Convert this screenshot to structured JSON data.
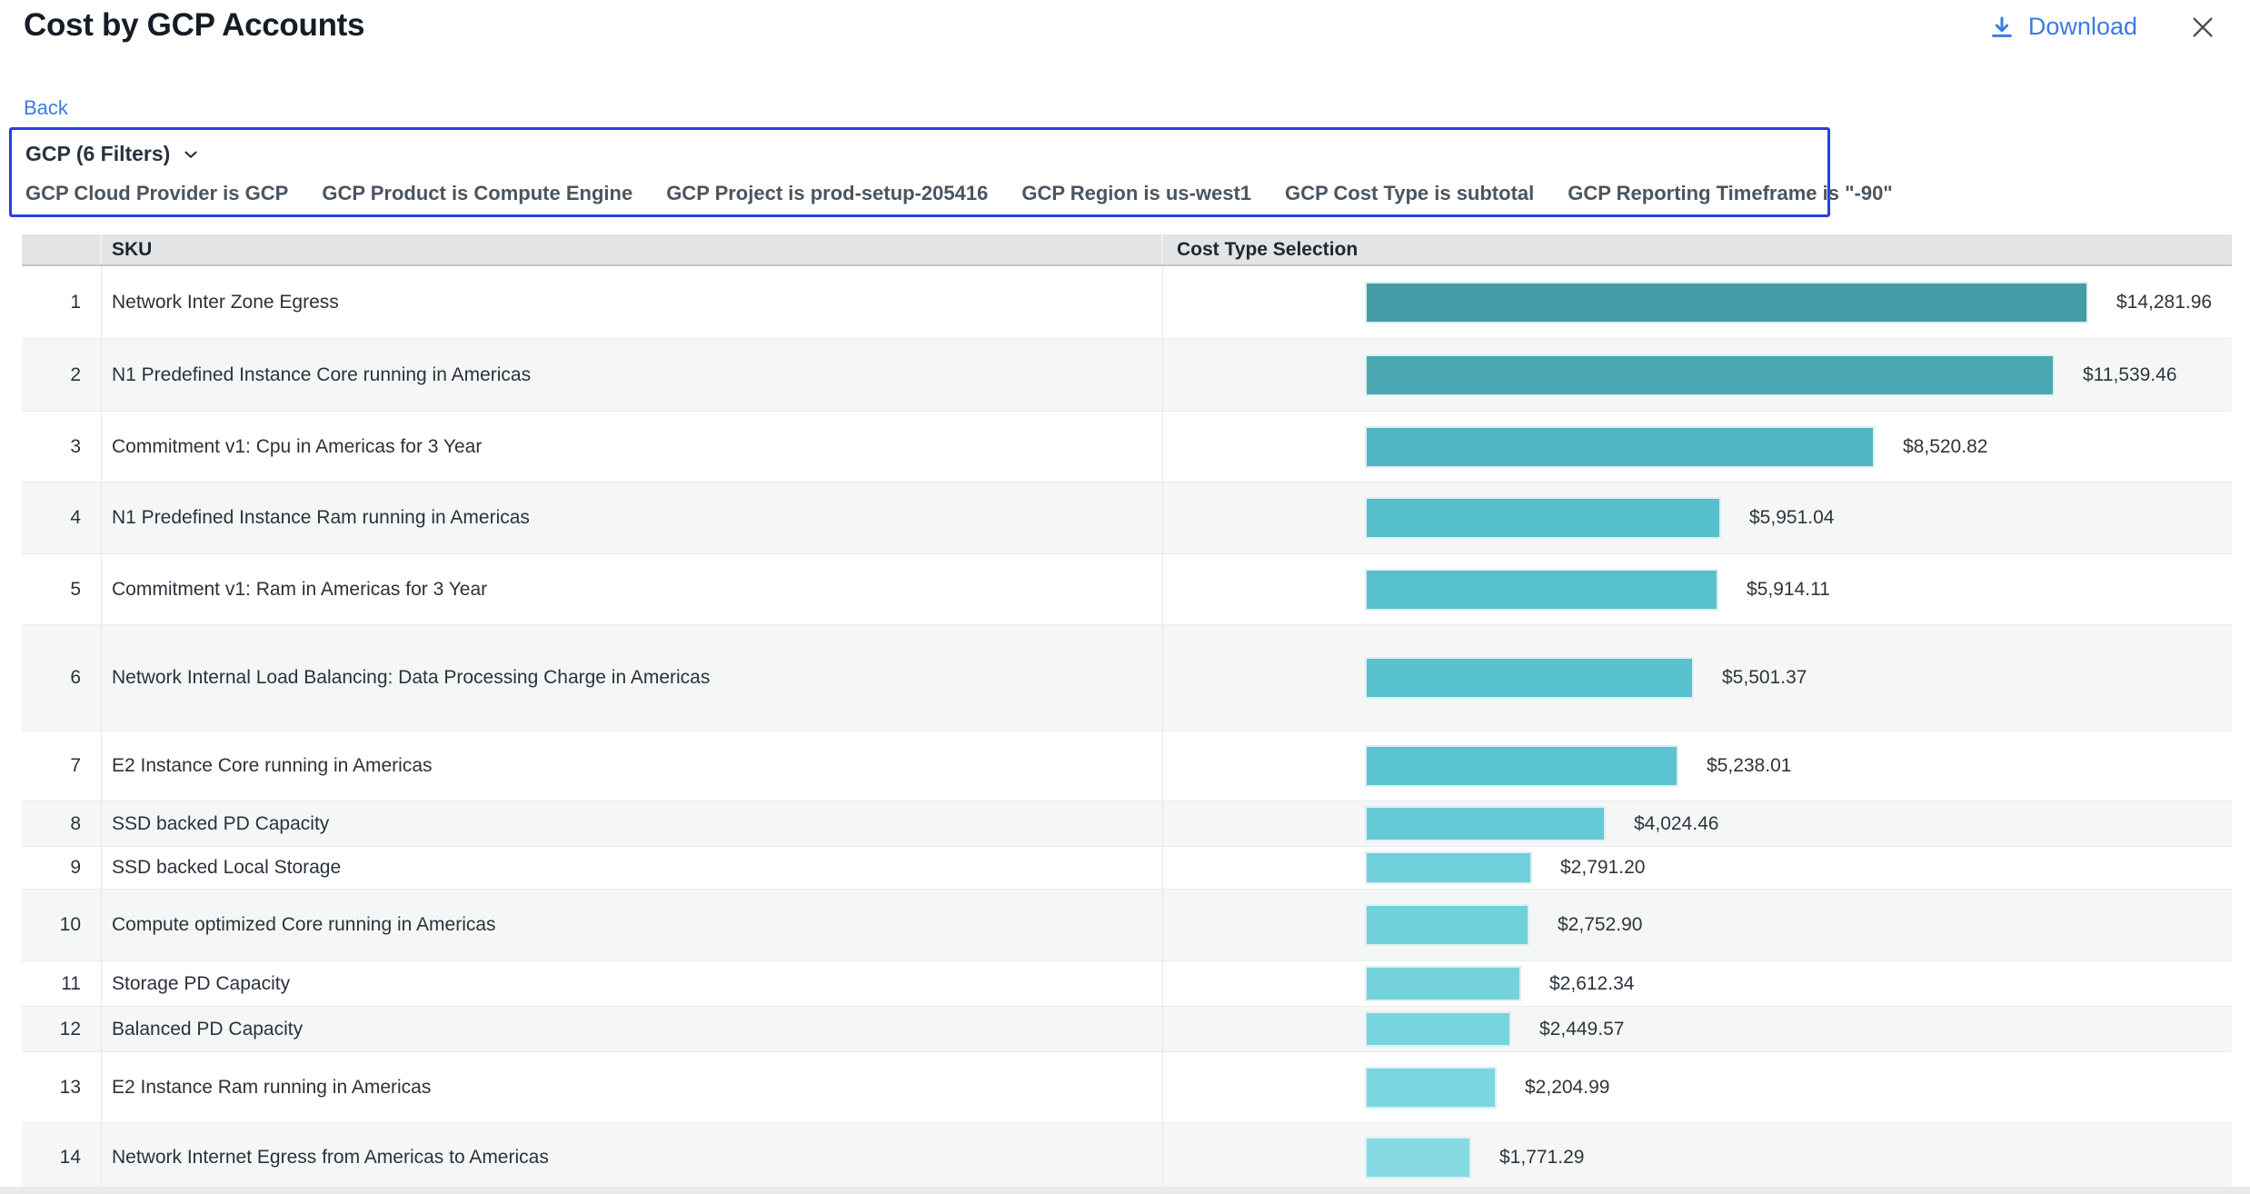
{
  "header": {
    "title": "Cost by GCP Accounts",
    "download_label": "Download",
    "link_color": "#3B7BE0"
  },
  "nav": {
    "back_label": "Back"
  },
  "filters": {
    "summary_label": "GCP (6 Filters)",
    "border_color": "#2B3EDE",
    "items": [
      "GCP Cloud Provider is GCP",
      "GCP Product is Compute Engine",
      "GCP Project is prod-setup-205416",
      "GCP Region is us-west1",
      "GCP Cost Type is subtotal",
      "GCP Reporting Timeframe is \"-90\""
    ]
  },
  "table": {
    "sku_header": "SKU",
    "cost_header": "Cost Type Selection",
    "row_numbers": [
      1,
      2,
      3,
      4,
      5,
      6,
      7,
      8,
      9,
      10,
      11,
      12,
      13,
      14
    ]
  },
  "chart_data": {
    "type": "bar",
    "orientation": "horizontal",
    "title": "Cost by GCP Accounts",
    "value_column_header": "Cost Type Selection",
    "xlim": [
      0,
      14281.96
    ],
    "grid": false,
    "legend": "none",
    "categories": [
      "Network Inter Zone Egress",
      "N1 Predefined Instance Core running in Americas",
      "Commitment v1: Cpu in Americas for 3 Year",
      "N1 Predefined Instance Ram running in Americas",
      "Commitment v1: Ram in Americas for 3 Year",
      "Network Internal Load Balancing: Data Processing Charge in Americas",
      "E2 Instance Core running in Americas",
      "SSD backed PD Capacity",
      "SSD backed Local Storage",
      "Compute optimized Core running in Americas",
      "Storage PD Capacity",
      "Balanced PD Capacity",
      "E2 Instance Ram running in Americas",
      "Network Internet Egress from Americas to Americas"
    ],
    "values": [
      14281.96,
      11539.46,
      8520.82,
      5951.04,
      5914.11,
      5501.37,
      5238.01,
      4024.46,
      2791.2,
      2752.9,
      2612.34,
      2449.57,
      2204.99,
      1771.29
    ],
    "value_labels": [
      "$14,281.96",
      "$11,539.46",
      "$8,520.82",
      "$5,951.04",
      "$5,914.11",
      "$5,501.37",
      "$5,238.01",
      "$4,024.46",
      "$2,791.20",
      "$2,752.90",
      "$2,612.34",
      "$2,449.57",
      "$2,204.99",
      "$1,771.29"
    ],
    "bar_colors": [
      "#469CA6",
      "#4AA8B3",
      "#4FB5C2",
      "#55BFCB",
      "#56C0CC",
      "#58C2CE",
      "#5AC4D1",
      "#64CAD6",
      "#70D0DB",
      "#71D1DB",
      "#74D2DD",
      "#77D4DE",
      "#7BD6E0",
      "#85D9E3"
    ]
  }
}
